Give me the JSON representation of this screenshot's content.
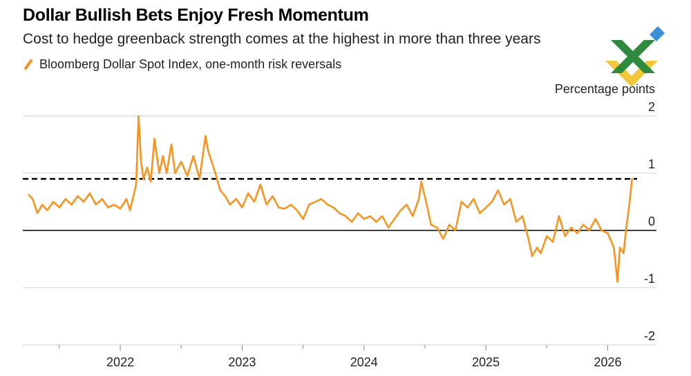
{
  "chart_data": {
    "type": "line",
    "title": "Dollar Bullish Bets Enjoy Fresh Momentum",
    "subtitle": "Cost to hedge greenback strength comes at the highest in more than three years",
    "legend": [
      "Bloomberg Dollar Spot Index, one-month risk reversals"
    ],
    "ylabel": "Percentage points",
    "xlabel": "",
    "ylim": [
      -2,
      2
    ],
    "yticks": [
      "2",
      "1",
      "0",
      "-1",
      "-2"
    ],
    "ytick_values": [
      2,
      1,
      0,
      -1,
      -2
    ],
    "xticks": [
      "2022",
      "2023",
      "2024",
      "2025",
      "2026"
    ],
    "xtick_values": [
      2022,
      2023,
      2024,
      2025,
      2026
    ],
    "xlim": [
      2021.2,
      2026.4
    ],
    "reference_line": 0.9,
    "series": [
      {
        "name": "Bloomberg Dollar Spot Index, one-month risk reversals",
        "color": "#f7931e",
        "x": [
          2021.25,
          2021.28,
          2021.32,
          2021.36,
          2021.4,
          2021.45,
          2021.5,
          2021.55,
          2021.6,
          2021.65,
          2021.7,
          2021.75,
          2021.8,
          2021.85,
          2021.9,
          2021.95,
          2022.0,
          2022.05,
          2022.08,
          2022.13,
          2022.15,
          2022.17,
          2022.19,
          2022.22,
          2022.25,
          2022.28,
          2022.32,
          2022.35,
          2022.38,
          2022.42,
          2022.45,
          2022.5,
          2022.55,
          2022.6,
          2022.65,
          2022.7,
          2022.72,
          2022.75,
          2022.78,
          2022.82,
          2022.86,
          2022.9,
          2022.95,
          2023.0,
          2023.05,
          2023.1,
          2023.15,
          2023.2,
          2023.25,
          2023.3,
          2023.35,
          2023.4,
          2023.45,
          2023.5,
          2023.55,
          2023.6,
          2023.65,
          2023.7,
          2023.75,
          2023.8,
          2023.85,
          2023.9,
          2023.95,
          2024.0,
          2024.05,
          2024.1,
          2024.15,
          2024.2,
          2024.25,
          2024.3,
          2024.35,
          2024.4,
          2024.45,
          2024.47,
          2024.52,
          2024.55,
          2024.6,
          2024.65,
          2024.7,
          2024.75,
          2024.8,
          2024.85,
          2024.9,
          2024.95,
          2025.0,
          2025.05,
          2025.1,
          2025.15,
          2025.2,
          2025.25,
          2025.3,
          2025.35,
          2025.38,
          2025.42,
          2025.45,
          2025.5,
          2025.55,
          2025.6,
          2025.65,
          2025.7,
          2025.75,
          2025.8,
          2025.85,
          2025.9,
          2025.95,
          2026.0,
          2026.05,
          2026.08,
          2026.1,
          2026.13,
          2026.15,
          2026.18,
          2026.2
        ],
        "values": [
          0.62,
          0.55,
          0.3,
          0.45,
          0.35,
          0.5,
          0.4,
          0.55,
          0.45,
          0.6,
          0.5,
          0.65,
          0.45,
          0.55,
          0.4,
          0.45,
          0.38,
          0.55,
          0.35,
          0.8,
          2.0,
          1.2,
          0.9,
          1.1,
          0.85,
          1.6,
          1.0,
          1.3,
          1.0,
          1.5,
          1.0,
          1.2,
          0.95,
          1.3,
          0.9,
          1.65,
          1.4,
          1.2,
          1.0,
          0.7,
          0.6,
          0.45,
          0.55,
          0.4,
          0.65,
          0.5,
          0.8,
          0.45,
          0.6,
          0.4,
          0.38,
          0.45,
          0.35,
          0.2,
          0.45,
          0.5,
          0.55,
          0.45,
          0.4,
          0.3,
          0.25,
          0.15,
          0.3,
          0.2,
          0.25,
          0.15,
          0.25,
          0.05,
          0.2,
          0.35,
          0.45,
          0.25,
          0.55,
          0.85,
          0.4,
          0.1,
          0.05,
          -0.15,
          0.1,
          0.0,
          0.5,
          0.4,
          0.55,
          0.3,
          0.4,
          0.5,
          0.7,
          0.45,
          0.55,
          0.15,
          0.25,
          -0.15,
          -0.45,
          -0.3,
          -0.4,
          -0.1,
          -0.2,
          0.25,
          -0.1,
          0.05,
          -0.05,
          0.1,
          0.0,
          0.2,
          0.0,
          -0.05,
          -0.3,
          -0.9,
          -0.3,
          -0.4,
          0.0,
          0.5,
          0.9
        ]
      }
    ]
  }
}
